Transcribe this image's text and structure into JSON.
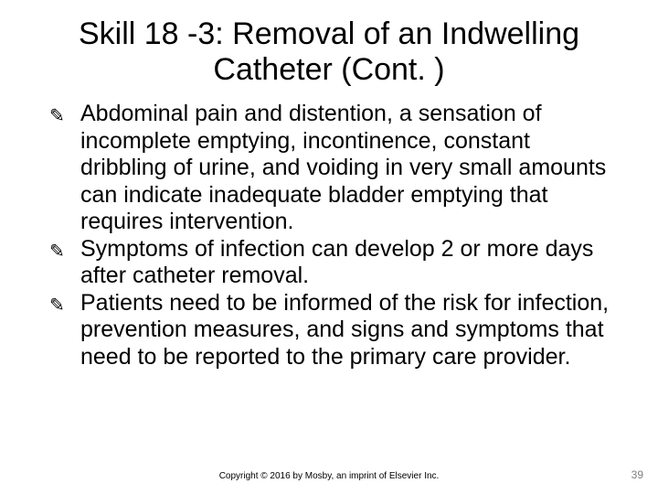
{
  "title": "Skill 18 -3: Removal of an Indwelling Catheter (Cont. )",
  "bullets": [
    "Abdominal pain and distention, a sensation of incomplete emptying, incontinence, constant dribbling of urine, and voiding in very small amounts can indicate inadequate bladder emptying that requires intervention.",
    "Symptoms of infection can develop 2 or more days after catheter removal.",
    "Patients need to be informed of the risk for infection, prevention measures, and signs and symptoms that need to be reported to the primary care provider."
  ],
  "copyright": "Copyright © 2016 by Mosby, an imprint of Elsevier Inc.",
  "page_number": "39",
  "bullet_glyph": "✎",
  "colors": {
    "background": "#ffffff",
    "text": "#000000",
    "page_num": "#808080"
  },
  "typography": {
    "title_fontsize": 34,
    "body_fontsize": 25,
    "copyright_fontsize": 10,
    "pagenum_fontsize": 12
  }
}
